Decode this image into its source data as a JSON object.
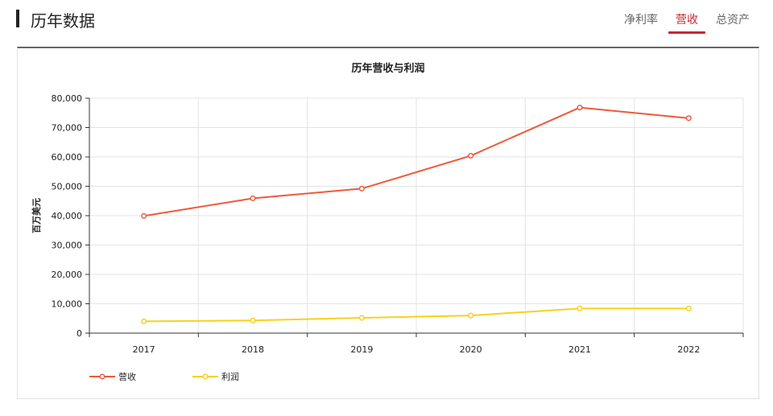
{
  "header": {
    "title": "历年数据",
    "tabs": [
      {
        "label": "净利率",
        "active": false
      },
      {
        "label": "营收",
        "active": true
      },
      {
        "label": "总资产",
        "active": false
      }
    ]
  },
  "colors": {
    "accent": "#c8272f",
    "revenue": "#ee5a3c",
    "profit": "#f7d11b"
  },
  "chart_data": {
    "type": "line",
    "title": "历年营收与利润",
    "xlabel": "",
    "ylabel": "百万美元",
    "categories": [
      "2017",
      "2018",
      "2019",
      "2020",
      "2021",
      "2022"
    ],
    "ylim": [
      0,
      80000
    ],
    "yticks": [
      "0",
      "10,000",
      "20,000",
      "30,000",
      "40,000",
      "50,000",
      "60,000",
      "70,000",
      "80,000"
    ],
    "grid": true,
    "legend": "bottom-left",
    "series": [
      {
        "name": "营收",
        "color": "#ee5a3c",
        "values": [
          39900,
          45900,
          49200,
          60400,
          76800,
          73200
        ]
      },
      {
        "name": "利润",
        "color": "#f7d11b",
        "values": [
          4000,
          4300,
          5200,
          6000,
          8400,
          8400
        ]
      }
    ]
  }
}
